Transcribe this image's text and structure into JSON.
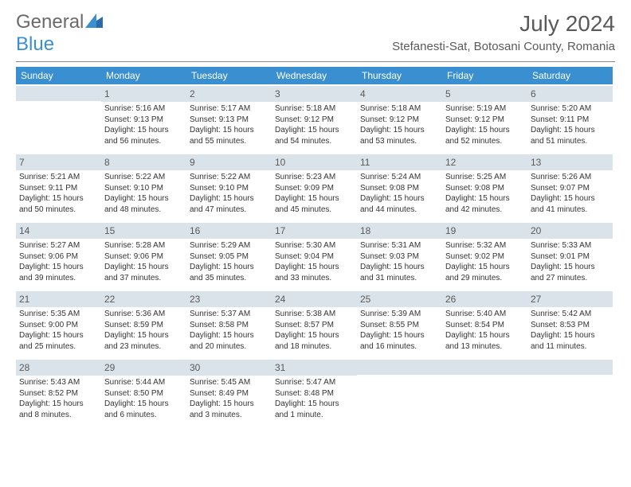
{
  "logo": {
    "text1": "General",
    "text2": "Blue"
  },
  "title": "July 2024",
  "location": "Stefanesti-Sat, Botosani County, Romania",
  "colors": {
    "header_bg": "#3a8fd0",
    "daynum_bg": "#dbe3ea",
    "text_dark": "#3a3a3a",
    "text_medium": "#5a5a5a"
  },
  "weekdays": [
    "Sunday",
    "Monday",
    "Tuesday",
    "Wednesday",
    "Thursday",
    "Friday",
    "Saturday"
  ],
  "weeks": [
    [
      {
        "num": "",
        "lines": []
      },
      {
        "num": "1",
        "lines": [
          "Sunrise: 5:16 AM",
          "Sunset: 9:13 PM",
          "Daylight: 15 hours",
          "and 56 minutes."
        ]
      },
      {
        "num": "2",
        "lines": [
          "Sunrise: 5:17 AM",
          "Sunset: 9:13 PM",
          "Daylight: 15 hours",
          "and 55 minutes."
        ]
      },
      {
        "num": "3",
        "lines": [
          "Sunrise: 5:18 AM",
          "Sunset: 9:12 PM",
          "Daylight: 15 hours",
          "and 54 minutes."
        ]
      },
      {
        "num": "4",
        "lines": [
          "Sunrise: 5:18 AM",
          "Sunset: 9:12 PM",
          "Daylight: 15 hours",
          "and 53 minutes."
        ]
      },
      {
        "num": "5",
        "lines": [
          "Sunrise: 5:19 AM",
          "Sunset: 9:12 PM",
          "Daylight: 15 hours",
          "and 52 minutes."
        ]
      },
      {
        "num": "6",
        "lines": [
          "Sunrise: 5:20 AM",
          "Sunset: 9:11 PM",
          "Daylight: 15 hours",
          "and 51 minutes."
        ]
      }
    ],
    [
      {
        "num": "7",
        "lines": [
          "Sunrise: 5:21 AM",
          "Sunset: 9:11 PM",
          "Daylight: 15 hours",
          "and 50 minutes."
        ]
      },
      {
        "num": "8",
        "lines": [
          "Sunrise: 5:22 AM",
          "Sunset: 9:10 PM",
          "Daylight: 15 hours",
          "and 48 minutes."
        ]
      },
      {
        "num": "9",
        "lines": [
          "Sunrise: 5:22 AM",
          "Sunset: 9:10 PM",
          "Daylight: 15 hours",
          "and 47 minutes."
        ]
      },
      {
        "num": "10",
        "lines": [
          "Sunrise: 5:23 AM",
          "Sunset: 9:09 PM",
          "Daylight: 15 hours",
          "and 45 minutes."
        ]
      },
      {
        "num": "11",
        "lines": [
          "Sunrise: 5:24 AM",
          "Sunset: 9:08 PM",
          "Daylight: 15 hours",
          "and 44 minutes."
        ]
      },
      {
        "num": "12",
        "lines": [
          "Sunrise: 5:25 AM",
          "Sunset: 9:08 PM",
          "Daylight: 15 hours",
          "and 42 minutes."
        ]
      },
      {
        "num": "13",
        "lines": [
          "Sunrise: 5:26 AM",
          "Sunset: 9:07 PM",
          "Daylight: 15 hours",
          "and 41 minutes."
        ]
      }
    ],
    [
      {
        "num": "14",
        "lines": [
          "Sunrise: 5:27 AM",
          "Sunset: 9:06 PM",
          "Daylight: 15 hours",
          "and 39 minutes."
        ]
      },
      {
        "num": "15",
        "lines": [
          "Sunrise: 5:28 AM",
          "Sunset: 9:06 PM",
          "Daylight: 15 hours",
          "and 37 minutes."
        ]
      },
      {
        "num": "16",
        "lines": [
          "Sunrise: 5:29 AM",
          "Sunset: 9:05 PM",
          "Daylight: 15 hours",
          "and 35 minutes."
        ]
      },
      {
        "num": "17",
        "lines": [
          "Sunrise: 5:30 AM",
          "Sunset: 9:04 PM",
          "Daylight: 15 hours",
          "and 33 minutes."
        ]
      },
      {
        "num": "18",
        "lines": [
          "Sunrise: 5:31 AM",
          "Sunset: 9:03 PM",
          "Daylight: 15 hours",
          "and 31 minutes."
        ]
      },
      {
        "num": "19",
        "lines": [
          "Sunrise: 5:32 AM",
          "Sunset: 9:02 PM",
          "Daylight: 15 hours",
          "and 29 minutes."
        ]
      },
      {
        "num": "20",
        "lines": [
          "Sunrise: 5:33 AM",
          "Sunset: 9:01 PM",
          "Daylight: 15 hours",
          "and 27 minutes."
        ]
      }
    ],
    [
      {
        "num": "21",
        "lines": [
          "Sunrise: 5:35 AM",
          "Sunset: 9:00 PM",
          "Daylight: 15 hours",
          "and 25 minutes."
        ]
      },
      {
        "num": "22",
        "lines": [
          "Sunrise: 5:36 AM",
          "Sunset: 8:59 PM",
          "Daylight: 15 hours",
          "and 23 minutes."
        ]
      },
      {
        "num": "23",
        "lines": [
          "Sunrise: 5:37 AM",
          "Sunset: 8:58 PM",
          "Daylight: 15 hours",
          "and 20 minutes."
        ]
      },
      {
        "num": "24",
        "lines": [
          "Sunrise: 5:38 AM",
          "Sunset: 8:57 PM",
          "Daylight: 15 hours",
          "and 18 minutes."
        ]
      },
      {
        "num": "25",
        "lines": [
          "Sunrise: 5:39 AM",
          "Sunset: 8:55 PM",
          "Daylight: 15 hours",
          "and 16 minutes."
        ]
      },
      {
        "num": "26",
        "lines": [
          "Sunrise: 5:40 AM",
          "Sunset: 8:54 PM",
          "Daylight: 15 hours",
          "and 13 minutes."
        ]
      },
      {
        "num": "27",
        "lines": [
          "Sunrise: 5:42 AM",
          "Sunset: 8:53 PM",
          "Daylight: 15 hours",
          "and 11 minutes."
        ]
      }
    ],
    [
      {
        "num": "28",
        "lines": [
          "Sunrise: 5:43 AM",
          "Sunset: 8:52 PM",
          "Daylight: 15 hours",
          "and 8 minutes."
        ]
      },
      {
        "num": "29",
        "lines": [
          "Sunrise: 5:44 AM",
          "Sunset: 8:50 PM",
          "Daylight: 15 hours",
          "and 6 minutes."
        ]
      },
      {
        "num": "30",
        "lines": [
          "Sunrise: 5:45 AM",
          "Sunset: 8:49 PM",
          "Daylight: 15 hours",
          "and 3 minutes."
        ]
      },
      {
        "num": "31",
        "lines": [
          "Sunrise: 5:47 AM",
          "Sunset: 8:48 PM",
          "Daylight: 15 hours",
          "and 1 minute."
        ]
      },
      {
        "num": "",
        "lines": []
      },
      {
        "num": "",
        "lines": []
      },
      {
        "num": "",
        "lines": []
      }
    ]
  ]
}
